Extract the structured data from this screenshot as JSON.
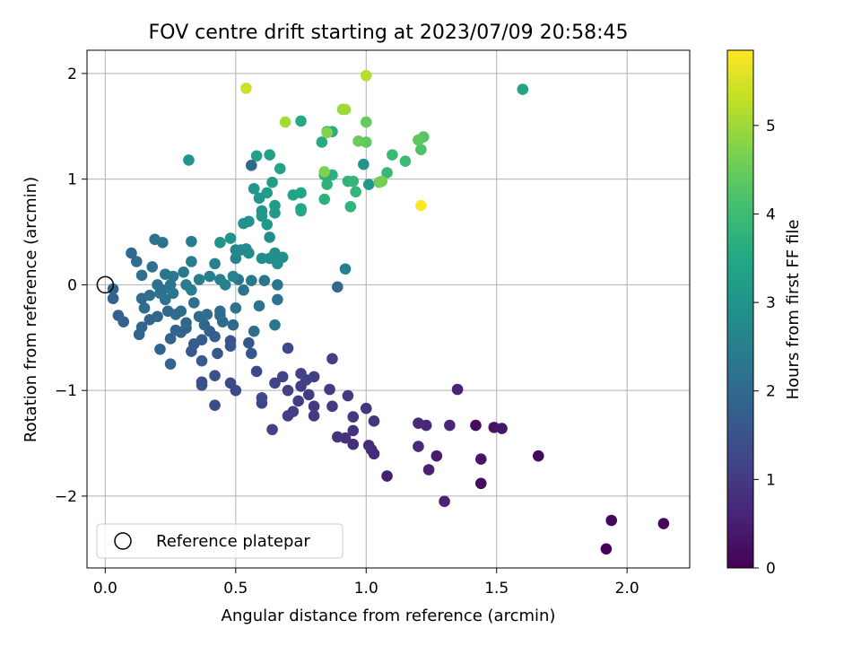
{
  "chart_data": {
    "type": "scatter",
    "title": "FOV centre drift starting at 2023/07/09 20:58:45",
    "xlabel": "Angular distance from reference (arcmin)",
    "ylabel": "Rotation from reference (arcmin)",
    "xlim": [
      -0.07,
      2.24
    ],
    "ylim": [
      -2.68,
      2.22
    ],
    "xticks": [
      0.0,
      0.5,
      1.0,
      1.5,
      2.0
    ],
    "xtick_labels": [
      "0.0",
      "0.5",
      "1.0",
      "1.5",
      "2.0"
    ],
    "yticks": [
      -2,
      -1,
      0,
      1,
      2
    ],
    "ytick_labels": [
      "−2",
      "−1",
      "0",
      "1",
      "2"
    ],
    "grid": true,
    "colormap": "viridis",
    "colorbar": {
      "label": "Hours from first FF file",
      "range": [
        0,
        5.85
      ],
      "ticks": [
        0,
        1,
        2,
        3,
        4,
        5
      ],
      "tick_labels": [
        "0",
        "1",
        "2",
        "3",
        "4",
        "5"
      ]
    },
    "legend": {
      "placement": "lower-left",
      "entries": [
        {
          "label": "Reference platepar",
          "marker": "open-circle",
          "color": "#000000"
        }
      ]
    },
    "reference_point": {
      "x": 0.0,
      "y": 0.0
    },
    "series": [
      {
        "points": [
          {
            "x": 1.92,
            "y": -2.5,
            "h": 0.05
          },
          {
            "x": 1.94,
            "y": -2.23,
            "h": 0.1
          },
          {
            "x": 2.14,
            "y": -2.26,
            "h": 0.1
          },
          {
            "x": 1.66,
            "y": -1.62,
            "h": 0.15
          },
          {
            "x": 1.44,
            "y": -1.88,
            "h": 0.2
          },
          {
            "x": 1.42,
            "y": -1.33,
            "h": 0.2
          },
          {
            "x": 1.49,
            "y": -1.35,
            "h": 0.3
          },
          {
            "x": 1.52,
            "y": -1.36,
            "h": 0.35
          },
          {
            "x": 1.44,
            "y": -1.65,
            "h": 0.35
          },
          {
            "x": 1.27,
            "y": -1.62,
            "h": 0.45
          },
          {
            "x": 1.24,
            "y": -1.75,
            "h": 0.55
          },
          {
            "x": 1.3,
            "y": -2.05,
            "h": 0.6
          },
          {
            "x": 1.35,
            "y": -0.99,
            "h": 0.6
          },
          {
            "x": 1.32,
            "y": -1.33,
            "h": 0.65
          },
          {
            "x": 1.23,
            "y": -1.33,
            "h": 0.65
          },
          {
            "x": 1.2,
            "y": -1.31,
            "h": 0.7
          },
          {
            "x": 1.2,
            "y": -1.53,
            "h": 0.7
          },
          {
            "x": 1.08,
            "y": -1.81,
            "h": 0.5
          },
          {
            "x": 1.02,
            "y": -1.56,
            "h": 0.65
          },
          {
            "x": 1.03,
            "y": -1.6,
            "h": 0.7
          },
          {
            "x": 1.01,
            "y": -1.52,
            "h": 0.75
          },
          {
            "x": 0.95,
            "y": -1.51,
            "h": 0.8
          },
          {
            "x": 0.92,
            "y": -1.45,
            "h": 0.8
          },
          {
            "x": 0.89,
            "y": -1.44,
            "h": 0.85
          },
          {
            "x": 0.95,
            "y": -1.38,
            "h": 0.85
          },
          {
            "x": 1.03,
            "y": -1.29,
            "h": 0.9
          },
          {
            "x": 1.0,
            "y": -1.17,
            "h": 0.9
          },
          {
            "x": 0.95,
            "y": -1.25,
            "h": 0.95
          },
          {
            "x": 0.93,
            "y": -1.05,
            "h": 0.95
          },
          {
            "x": 0.87,
            "y": -1.15,
            "h": 1.0
          },
          {
            "x": 0.86,
            "y": -0.99,
            "h": 1.05
          },
          {
            "x": 0.87,
            "y": -0.7,
            "h": 1.1
          },
          {
            "x": 0.8,
            "y": -1.15,
            "h": 1.0
          },
          {
            "x": 0.8,
            "y": -1.24,
            "h": 1.0
          },
          {
            "x": 0.78,
            "y": -1.04,
            "h": 1.05
          },
          {
            "x": 0.75,
            "y": -0.96,
            "h": 1.05
          },
          {
            "x": 0.77,
            "y": -0.9,
            "h": 1.1
          },
          {
            "x": 0.8,
            "y": -0.87,
            "h": 1.1
          },
          {
            "x": 0.75,
            "y": -0.84,
            "h": 1.15
          },
          {
            "x": 0.74,
            "y": -1.1,
            "h": 1.05
          },
          {
            "x": 0.72,
            "y": -1.2,
            "h": 1.1
          },
          {
            "x": 0.7,
            "y": -1.24,
            "h": 1.1
          },
          {
            "x": 0.7,
            "y": -1.0,
            "h": 1.15
          },
          {
            "x": 0.68,
            "y": -0.87,
            "h": 1.2
          },
          {
            "x": 0.65,
            "y": -0.93,
            "h": 1.2
          },
          {
            "x": 0.7,
            "y": -0.6,
            "h": 1.3
          },
          {
            "x": 0.64,
            "y": -1.37,
            "h": 1.15
          },
          {
            "x": 0.6,
            "y": -1.12,
            "h": 1.2
          },
          {
            "x": 0.6,
            "y": -1.07,
            "h": 1.25
          },
          {
            "x": 0.58,
            "y": -0.82,
            "h": 1.25
          },
          {
            "x": 0.5,
            "y": -1.0,
            "h": 1.3
          },
          {
            "x": 0.48,
            "y": -0.93,
            "h": 1.3
          },
          {
            "x": 0.42,
            "y": -1.14,
            "h": 1.35
          },
          {
            "x": 0.37,
            "y": -0.92,
            "h": 1.4
          },
          {
            "x": 0.37,
            "y": -0.95,
            "h": 1.45
          },
          {
            "x": 0.42,
            "y": -0.86,
            "h": 1.45
          },
          {
            "x": 0.48,
            "y": -0.53,
            "h": 1.5
          },
          {
            "x": 0.48,
            "y": -0.58,
            "h": 1.55
          },
          {
            "x": 0.55,
            "y": -0.55,
            "h": 1.55
          },
          {
            "x": 0.56,
            "y": -0.65,
            "h": 1.6
          },
          {
            "x": 0.43,
            "y": -0.65,
            "h": 1.6
          },
          {
            "x": 0.37,
            "y": -0.72,
            "h": 1.65
          },
          {
            "x": 0.33,
            "y": -0.63,
            "h": 1.65
          },
          {
            "x": 0.34,
            "y": -0.56,
            "h": 1.7
          },
          {
            "x": 0.37,
            "y": -0.52,
            "h": 1.7
          },
          {
            "x": 0.42,
            "y": -0.49,
            "h": 1.75
          },
          {
            "x": 0.4,
            "y": -0.44,
            "h": 1.75
          },
          {
            "x": 0.31,
            "y": -0.41,
            "h": 1.8
          },
          {
            "x": 0.29,
            "y": -0.45,
            "h": 1.8
          },
          {
            "x": 0.25,
            "y": -0.51,
            "h": 1.85
          },
          {
            "x": 0.25,
            "y": -0.75,
            "h": 1.85
          },
          {
            "x": 0.21,
            "y": -0.61,
            "h": 1.9
          },
          {
            "x": 0.27,
            "y": -0.43,
            "h": 1.9
          },
          {
            "x": 0.31,
            "y": -0.36,
            "h": 1.95
          },
          {
            "x": 0.38,
            "y": -0.38,
            "h": 1.95
          },
          {
            "x": 0.45,
            "y": -0.35,
            "h": 2.0
          },
          {
            "x": 0.49,
            "y": -0.38,
            "h": 2.0
          },
          {
            "x": 0.57,
            "y": -0.44,
            "h": 2.05
          },
          {
            "x": 0.65,
            "y": -0.38,
            "h": 2.3
          },
          {
            "x": 0.59,
            "y": -0.2,
            "h": 2.2
          },
          {
            "x": 0.66,
            "y": -0.14,
            "h": 2.2
          },
          {
            "x": 0.66,
            "y": 0.0,
            "h": 2.3
          },
          {
            "x": 0.61,
            "y": 0.04,
            "h": 2.3
          },
          {
            "x": 0.56,
            "y": 0.04,
            "h": 2.35
          },
          {
            "x": 0.53,
            "y": -0.05,
            "h": 2.25
          },
          {
            "x": 0.51,
            "y": 0.05,
            "h": 2.25
          },
          {
            "x": 0.5,
            "y": -0.22,
            "h": 2.15
          },
          {
            "x": 0.44,
            "y": -0.25,
            "h": 2.15
          },
          {
            "x": 0.44,
            "y": -0.29,
            "h": 2.1
          },
          {
            "x": 0.39,
            "y": -0.28,
            "h": 2.1
          },
          {
            "x": 0.36,
            "y": -0.3,
            "h": 2.05
          },
          {
            "x": 0.34,
            "y": -0.17,
            "h": 2.1
          },
          {
            "x": 0.29,
            "y": -0.25,
            "h": 2.05
          },
          {
            "x": 0.27,
            "y": -0.28,
            "h": 2.05
          },
          {
            "x": 0.24,
            "y": -0.25,
            "h": 2.0
          },
          {
            "x": 0.2,
            "y": -0.3,
            "h": 1.95
          },
          {
            "x": 0.17,
            "y": -0.33,
            "h": 1.95
          },
          {
            "x": 0.14,
            "y": -0.4,
            "h": 1.9
          },
          {
            "x": 0.13,
            "y": -0.47,
            "h": 1.85
          },
          {
            "x": 0.07,
            "y": -0.35,
            "h": 1.8
          },
          {
            "x": 0.05,
            "y": -0.29,
            "h": 1.8
          },
          {
            "x": 0.03,
            "y": -0.13,
            "h": 1.85
          },
          {
            "x": 0.03,
            "y": -0.04,
            "h": 1.9
          },
          {
            "x": 0.1,
            "y": 0.3,
            "h": 2.0
          },
          {
            "x": 0.12,
            "y": 0.22,
            "h": 2.05
          },
          {
            "x": 0.14,
            "y": -0.13,
            "h": 2.0
          },
          {
            "x": 0.15,
            "y": -0.22,
            "h": 2.05
          },
          {
            "x": 0.17,
            "y": -0.1,
            "h": 2.1
          },
          {
            "x": 0.18,
            "y": 0.17,
            "h": 2.15
          },
          {
            "x": 0.14,
            "y": 0.09,
            "h": 2.15
          },
          {
            "x": 0.19,
            "y": 0.43,
            "h": 2.2
          },
          {
            "x": 0.22,
            "y": 0.4,
            "h": 2.25
          },
          {
            "x": 0.23,
            "y": 0.1,
            "h": 2.3
          },
          {
            "x": 0.25,
            "y": 0.0,
            "h": 2.3
          },
          {
            "x": 0.22,
            "y": -0.05,
            "h": 2.25
          },
          {
            "x": 0.2,
            "y": 0.0,
            "h": 2.2
          },
          {
            "x": 0.21,
            "y": -0.08,
            "h": 2.2
          },
          {
            "x": 0.23,
            "y": -0.14,
            "h": 2.2
          },
          {
            "x": 0.26,
            "y": -0.08,
            "h": 2.3
          },
          {
            "x": 0.26,
            "y": 0.08,
            "h": 2.35
          },
          {
            "x": 0.3,
            "y": 0.12,
            "h": 2.35
          },
          {
            "x": 0.33,
            "y": 0.22,
            "h": 2.4
          },
          {
            "x": 0.33,
            "y": 0.41,
            "h": 2.45
          },
          {
            "x": 0.31,
            "y": 0.0,
            "h": 2.4
          },
          {
            "x": 0.33,
            "y": -0.05,
            "h": 2.45
          },
          {
            "x": 0.36,
            "y": 0.05,
            "h": 2.45
          },
          {
            "x": 0.4,
            "y": 0.08,
            "h": 2.5
          },
          {
            "x": 0.42,
            "y": 0.2,
            "h": 2.5
          },
          {
            "x": 0.44,
            "y": 0.05,
            "h": 2.55
          },
          {
            "x": 0.46,
            "y": 0.0,
            "h": 2.55
          },
          {
            "x": 0.49,
            "y": 0.08,
            "h": 2.6
          },
          {
            "x": 0.5,
            "y": 0.25,
            "h": 2.65
          },
          {
            "x": 0.52,
            "y": 0.33,
            "h": 2.7
          },
          {
            "x": 0.5,
            "y": 0.33,
            "h": 2.7
          },
          {
            "x": 0.54,
            "y": 0.34,
            "h": 2.75
          },
          {
            "x": 0.55,
            "y": 0.3,
            "h": 2.75
          },
          {
            "x": 0.6,
            "y": 0.25,
            "h": 2.8
          },
          {
            "x": 0.63,
            "y": 0.45,
            "h": 2.8
          },
          {
            "x": 0.63,
            "y": 0.25,
            "h": 2.85
          },
          {
            "x": 0.65,
            "y": 0.3,
            "h": 2.85
          },
          {
            "x": 0.68,
            "y": 0.26,
            "h": 2.9
          },
          {
            "x": 0.66,
            "y": 0.2,
            "h": 2.9
          },
          {
            "x": 0.55,
            "y": 0.6,
            "h": 2.95
          },
          {
            "x": 0.53,
            "y": 0.58,
            "h": 2.95
          },
          {
            "x": 0.48,
            "y": 0.44,
            "h": 3.0
          },
          {
            "x": 0.44,
            "y": 0.4,
            "h": 2.95
          },
          {
            "x": 0.57,
            "y": 0.91,
            "h": 3.05
          },
          {
            "x": 0.59,
            "y": 0.82,
            "h": 3.05
          },
          {
            "x": 0.6,
            "y": 0.7,
            "h": 3.1
          },
          {
            "x": 0.6,
            "y": 0.65,
            "h": 3.1
          },
          {
            "x": 0.62,
            "y": 0.57,
            "h": 3.15
          },
          {
            "x": 0.65,
            "y": 0.68,
            "h": 3.15
          },
          {
            "x": 0.65,
            "y": 0.75,
            "h": 3.2
          },
          {
            "x": 0.62,
            "y": 0.87,
            "h": 3.2
          },
          {
            "x": 0.64,
            "y": 0.97,
            "h": 3.25
          },
          {
            "x": 0.56,
            "y": 1.13,
            "h": 2.0
          },
          {
            "x": 0.32,
            "y": 1.18,
            "h": 3.0
          },
          {
            "x": 0.58,
            "y": 1.22,
            "h": 3.3
          },
          {
            "x": 0.63,
            "y": 1.23,
            "h": 3.3
          },
          {
            "x": 0.67,
            "y": 1.1,
            "h": 3.35
          },
          {
            "x": 0.72,
            "y": 0.85,
            "h": 3.4
          },
          {
            "x": 0.75,
            "y": 0.87,
            "h": 3.45
          },
          {
            "x": 0.75,
            "y": 0.7,
            "h": 3.5
          },
          {
            "x": 0.75,
            "y": 0.72,
            "h": 3.5
          },
          {
            "x": 0.75,
            "y": 1.55,
            "h": 3.55
          },
          {
            "x": 0.83,
            "y": 1.35,
            "h": 3.6
          },
          {
            "x": 0.85,
            "y": 1.45,
            "h": 3.6
          },
          {
            "x": 0.87,
            "y": 1.45,
            "h": 3.65
          },
          {
            "x": 0.87,
            "y": 1.04,
            "h": 3.7
          },
          {
            "x": 0.84,
            "y": 1.04,
            "h": 3.7
          },
          {
            "x": 0.85,
            "y": 0.95,
            "h": 3.75
          },
          {
            "x": 0.84,
            "y": 0.81,
            "h": 3.75
          },
          {
            "x": 0.93,
            "y": 0.98,
            "h": 3.8
          },
          {
            "x": 0.94,
            "y": 0.74,
            "h": 3.8
          },
          {
            "x": 0.96,
            "y": 0.88,
            "h": 3.85
          },
          {
            "x": 0.95,
            "y": 0.98,
            "h": 3.85
          },
          {
            "x": 0.99,
            "y": 1.14,
            "h": 3.0
          },
          {
            "x": 1.01,
            "y": 0.95,
            "h": 3.1
          },
          {
            "x": 0.89,
            "y": -0.02,
            "h": 2.0
          },
          {
            "x": 0.92,
            "y": 0.15,
            "h": 2.5
          },
          {
            "x": 1.08,
            "y": 1.06,
            "h": 3.9
          },
          {
            "x": 1.1,
            "y": 1.23,
            "h": 3.95
          },
          {
            "x": 1.15,
            "y": 1.17,
            "h": 4.0
          },
          {
            "x": 1.21,
            "y": 1.28,
            "h": 4.2
          },
          {
            "x": 1.22,
            "y": 1.4,
            "h": 4.3
          },
          {
            "x": 1.2,
            "y": 1.37,
            "h": 4.35
          },
          {
            "x": 1.0,
            "y": 1.35,
            "h": 4.4
          },
          {
            "x": 1.0,
            "y": 1.54,
            "h": 4.45
          },
          {
            "x": 0.97,
            "y": 1.36,
            "h": 4.5
          },
          {
            "x": 1.05,
            "y": 0.97,
            "h": 4.55
          },
          {
            "x": 1.06,
            "y": 0.98,
            "h": 4.6
          },
          {
            "x": 0.84,
            "y": 1.07,
            "h": 4.7
          },
          {
            "x": 0.85,
            "y": 1.44,
            "h": 4.75
          },
          {
            "x": 0.91,
            "y": 1.66,
            "h": 4.9
          },
          {
            "x": 0.92,
            "y": 1.66,
            "h": 5.0
          },
          {
            "x": 0.69,
            "y": 1.54,
            "h": 5.05
          },
          {
            "x": 1.0,
            "y": 1.98,
            "h": 5.2
          },
          {
            "x": 0.54,
            "y": 1.86,
            "h": 5.4
          },
          {
            "x": 1.6,
            "y": 1.85,
            "h": 3.4
          },
          {
            "x": 1.21,
            "y": 0.75,
            "h": 5.85
          }
        ]
      }
    ]
  }
}
